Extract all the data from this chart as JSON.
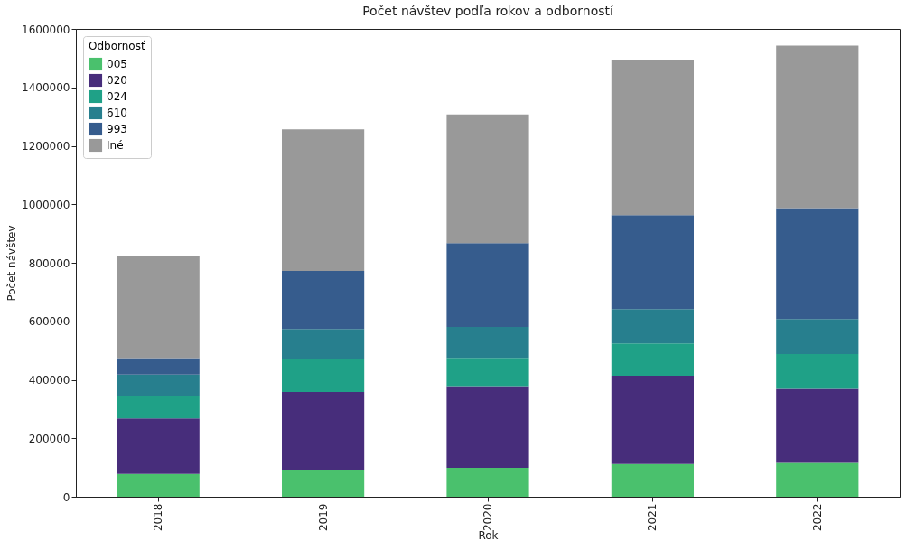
{
  "chart_data": {
    "type": "bar",
    "title": "Počet návštev podľa rokov a odborností",
    "xlabel": "Rok",
    "ylabel": "Počet návštev",
    "legend_title": "Odbornosť",
    "categories": [
      "2018",
      "2019",
      "2020",
      "2021",
      "2022"
    ],
    "stacked": true,
    "series": [
      {
        "name": "005",
        "color": "#4ac16d",
        "values": [
          78000,
          93000,
          99000,
          112000,
          116000
        ]
      },
      {
        "name": "020",
        "color": "#472d7b",
        "values": [
          190000,
          265000,
          279000,
          302000,
          253000
        ]
      },
      {
        "name": "024",
        "color": "#1fa187",
        "values": [
          78000,
          112000,
          97000,
          110000,
          119000
        ]
      },
      {
        "name": "610",
        "color": "#277f8e",
        "values": [
          72000,
          104000,
          106000,
          118000,
          120000
        ]
      },
      {
        "name": "993",
        "color": "#365c8d",
        "values": [
          56000,
          198000,
          286000,
          321000,
          379000
        ]
      },
      {
        "name": "Iné",
        "color": "#999999",
        "values": [
          348000,
          484000,
          440000,
          532000,
          556000
        ]
      }
    ],
    "ylim": [
      0,
      1600000
    ],
    "yticks": [
      0,
      200000,
      400000,
      600000,
      800000,
      1000000,
      1200000,
      1400000,
      1600000
    ],
    "grid": false,
    "legend": "top left"
  }
}
